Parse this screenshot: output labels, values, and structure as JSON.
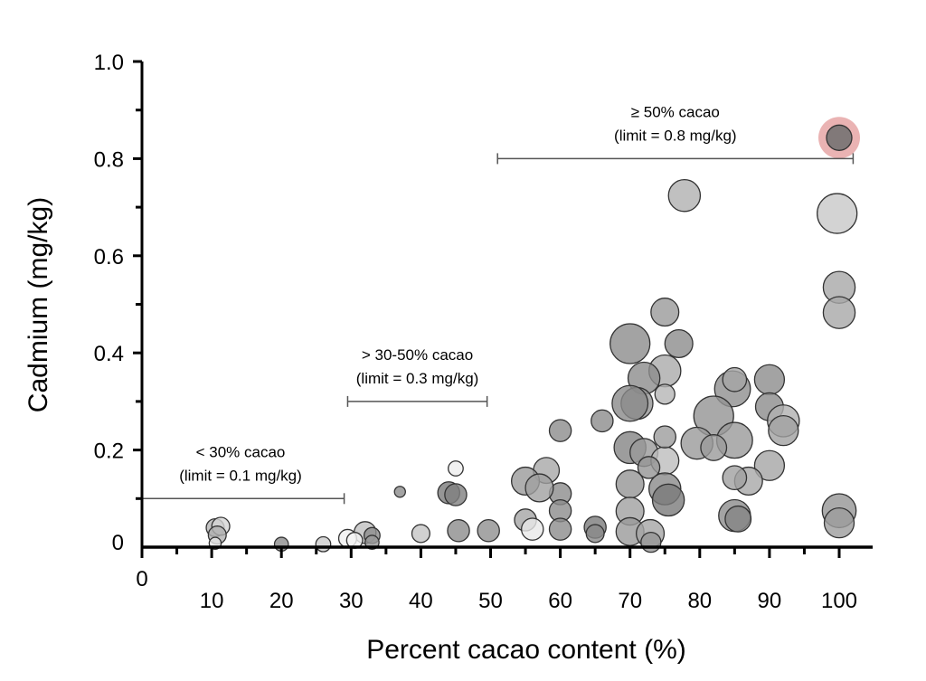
{
  "chart_data": {
    "type": "scatter",
    "subtype": "bubble",
    "title": "",
    "xlabel": "Percent cacao content (%)",
    "ylabel": "Cadmium (mg/kg)",
    "xlim": [
      0,
      103
    ],
    "ylim": [
      0,
      1.0
    ],
    "xticks": [
      0,
      10,
      20,
      30,
      40,
      50,
      60,
      70,
      80,
      90,
      100
    ],
    "xtick_labels": [
      "0",
      "10",
      "20",
      "30",
      "40",
      "50",
      "60",
      "70",
      "80",
      "90",
      "100"
    ],
    "yticks": [
      0,
      0.2,
      0.4,
      0.6,
      0.8,
      1.0
    ],
    "ytick_labels": [
      "0",
      "0.2",
      "0.4",
      "0.6",
      "0.8",
      "1.0"
    ],
    "grid": false,
    "colors": {
      "point_fill": "#8a8a8a",
      "point_edge": "#333333",
      "highlight": "#e39a9a"
    },
    "annotations": [
      {
        "line1": "< 30% cacao",
        "line2": "(limit = 0.1 mg/kg)",
        "x_from": 0,
        "x_to": 29,
        "y": 0.1
      },
      {
        "line1": "> 30-50% cacao",
        "line2": "(limit = 0.3 mg/kg)",
        "x_from": 29.5,
        "x_to": 49.5,
        "y": 0.3
      },
      {
        "line1": "≥ 50% cacao",
        "line2": "(limit = 0.8 mg/kg)",
        "x_from": 51,
        "x_to": 102,
        "y": 0.8
      }
    ],
    "points": [
      {
        "x": 100,
        "y": 0.843,
        "size": 2.0,
        "shade": "#6f6f6f",
        "highlight": true
      },
      {
        "x": 77.8,
        "y": 0.724,
        "size": 1.6,
        "shade": "#b0b0b0"
      },
      {
        "x": 99.7,
        "y": 0.687,
        "size": 2.0,
        "shade": "#c8c8c8"
      },
      {
        "x": 100,
        "y": 0.535,
        "size": 1.6,
        "shade": "#a8a8a8"
      },
      {
        "x": 100,
        "y": 0.483,
        "size": 1.6,
        "shade": "#a8a8a8"
      },
      {
        "x": 75,
        "y": 0.484,
        "size": 1.4,
        "shade": "#9a9a9a"
      },
      {
        "x": 70,
        "y": 0.419,
        "size": 2.0,
        "shade": "#8c8c8c"
      },
      {
        "x": 77,
        "y": 0.419,
        "size": 1.4,
        "shade": "#8c8c8c"
      },
      {
        "x": 75,
        "y": 0.363,
        "size": 1.6,
        "shade": "#aaaaaa"
      },
      {
        "x": 72,
        "y": 0.348,
        "size": 1.6,
        "shade": "#8c8c8c"
      },
      {
        "x": 75,
        "y": 0.315,
        "size": 1.0,
        "shade": "#b5b5b5"
      },
      {
        "x": 71,
        "y": 0.296,
        "size": 1.6,
        "shade": "#959595"
      },
      {
        "x": 70,
        "y": 0.296,
        "size": 1.8,
        "shade": "#8a8a8a"
      },
      {
        "x": 84.7,
        "y": 0.326,
        "size": 1.8,
        "shade": "#8e8e8e"
      },
      {
        "x": 85,
        "y": 0.345,
        "size": 1.2,
        "shade": "#a5a5a5"
      },
      {
        "x": 90,
        "y": 0.345,
        "size": 1.5,
        "shade": "#8c8c8c"
      },
      {
        "x": 90,
        "y": 0.289,
        "size": 1.4,
        "shade": "#8c8c8c"
      },
      {
        "x": 92,
        "y": 0.26,
        "size": 1.6,
        "shade": "#b0b0b0"
      },
      {
        "x": 92,
        "y": 0.24,
        "size": 1.5,
        "shade": "#a0a0a0"
      },
      {
        "x": 82,
        "y": 0.27,
        "size": 2.0,
        "shade": "#949494"
      },
      {
        "x": 85,
        "y": 0.22,
        "size": 1.8,
        "shade": "#9a9a9a"
      },
      {
        "x": 79.6,
        "y": 0.214,
        "size": 1.6,
        "shade": "#9a9a9a"
      },
      {
        "x": 82,
        "y": 0.205,
        "size": 1.3,
        "shade": "#9a9a9a"
      },
      {
        "x": 90,
        "y": 0.168,
        "size": 1.5,
        "shade": "#a5a5a5"
      },
      {
        "x": 87,
        "y": 0.136,
        "size": 1.4,
        "shade": "#a8a8a8"
      },
      {
        "x": 85,
        "y": 0.143,
        "size": 1.2,
        "shade": "#a0a0a0"
      },
      {
        "x": 85,
        "y": 0.065,
        "size": 1.6,
        "shade": "#8c8c8c"
      },
      {
        "x": 85.5,
        "y": 0.058,
        "size": 1.3,
        "shade": "#858585"
      },
      {
        "x": 100,
        "y": 0.075,
        "size": 1.7,
        "shade": "#959595"
      },
      {
        "x": 100,
        "y": 0.05,
        "size": 1.5,
        "shade": "#9c9c9c"
      },
      {
        "x": 70,
        "y": 0.205,
        "size": 1.6,
        "shade": "#858585"
      },
      {
        "x": 72,
        "y": 0.195,
        "size": 1.4,
        "shade": "#9a9a9a"
      },
      {
        "x": 75,
        "y": 0.178,
        "size": 1.4,
        "shade": "#bdbdbd"
      },
      {
        "x": 72.7,
        "y": 0.164,
        "size": 1.1,
        "shade": "#959595"
      },
      {
        "x": 75,
        "y": 0.227,
        "size": 1.1,
        "shade": "#9c9c9c"
      },
      {
        "x": 70,
        "y": 0.13,
        "size": 1.4,
        "shade": "#959595"
      },
      {
        "x": 75,
        "y": 0.12,
        "size": 1.6,
        "shade": "#8a8a8a"
      },
      {
        "x": 75.5,
        "y": 0.097,
        "size": 1.6,
        "shade": "#7a7a7a"
      },
      {
        "x": 70,
        "y": 0.074,
        "size": 1.4,
        "shade": "#a0a0a0"
      },
      {
        "x": 70,
        "y": 0.032,
        "size": 1.4,
        "shade": "#9a9a9a"
      },
      {
        "x": 72.9,
        "y": 0.028,
        "size": 1.4,
        "shade": "#a5a5a5"
      },
      {
        "x": 73,
        "y": 0.01,
        "size": 1.0,
        "shade": "#959595"
      },
      {
        "x": 66,
        "y": 0.26,
        "size": 1.1,
        "shade": "#8c8c8c"
      },
      {
        "x": 60,
        "y": 0.24,
        "size": 1.1,
        "shade": "#8c8c8c"
      },
      {
        "x": 60,
        "y": 0.11,
        "size": 1.1,
        "shade": "#8c8c8c"
      },
      {
        "x": 60,
        "y": 0.075,
        "size": 1.1,
        "shade": "#8c8c8c"
      },
      {
        "x": 60,
        "y": 0.037,
        "size": 1.1,
        "shade": "#8c8c8c"
      },
      {
        "x": 58,
        "y": 0.158,
        "size": 1.3,
        "shade": "#a8a8a8"
      },
      {
        "x": 55,
        "y": 0.136,
        "size": 1.4,
        "shade": "#9a9a9a"
      },
      {
        "x": 57,
        "y": 0.122,
        "size": 1.4,
        "shade": "#a0a0a0"
      },
      {
        "x": 55,
        "y": 0.056,
        "size": 1.1,
        "shade": "#a5a5a5"
      },
      {
        "x": 56,
        "y": 0.037,
        "size": 1.1,
        "shade": "#e8e8e8"
      },
      {
        "x": 65,
        "y": 0.041,
        "size": 1.1,
        "shade": "#7a7a7a"
      },
      {
        "x": 65,
        "y": 0.028,
        "size": 0.9,
        "shade": "#8a8a8a"
      },
      {
        "x": 49.7,
        "y": 0.034,
        "size": 1.1,
        "shade": "#909090"
      },
      {
        "x": 45.4,
        "y": 0.034,
        "size": 1.1,
        "shade": "#8c8c8c"
      },
      {
        "x": 40,
        "y": 0.028,
        "size": 0.9,
        "shade": "#c5c5c5"
      },
      {
        "x": 44,
        "y": 0.112,
        "size": 1.1,
        "shade": "#7a7a7a"
      },
      {
        "x": 45,
        "y": 0.108,
        "size": 1.1,
        "shade": "#808080"
      },
      {
        "x": 45,
        "y": 0.162,
        "size": 0.75,
        "shade": "#ededed"
      },
      {
        "x": 37,
        "y": 0.114,
        "size": 0.55,
        "shade": "#8c8c8c"
      },
      {
        "x": 32,
        "y": 0.03,
        "size": 1.1,
        "shade": "#c0c0c0"
      },
      {
        "x": 33,
        "y": 0.024,
        "size": 0.8,
        "shade": "#8c8c8c"
      },
      {
        "x": 33,
        "y": 0.01,
        "size": 0.7,
        "shade": "#9a9a9a"
      },
      {
        "x": 29.5,
        "y": 0.018,
        "size": 0.9,
        "shade": "#f0f0f0"
      },
      {
        "x": 30.5,
        "y": 0.014,
        "size": 0.8,
        "shade": "#f5f5f5"
      },
      {
        "x": 26,
        "y": 0.006,
        "size": 0.75,
        "shade": "#cccccc"
      },
      {
        "x": 20,
        "y": 0.006,
        "size": 0.7,
        "shade": "#8c8c8c"
      },
      {
        "x": 10.5,
        "y": 0.04,
        "size": 0.9,
        "shade": "#b5b5b5"
      },
      {
        "x": 11.3,
        "y": 0.043,
        "size": 0.9,
        "shade": "#d5d5d5"
      },
      {
        "x": 10.8,
        "y": 0.025,
        "size": 0.9,
        "shade": "#b0b0b0"
      },
      {
        "x": 10.5,
        "y": 0.008,
        "size": 0.6,
        "shade": "#e5e5e5"
      }
    ]
  }
}
